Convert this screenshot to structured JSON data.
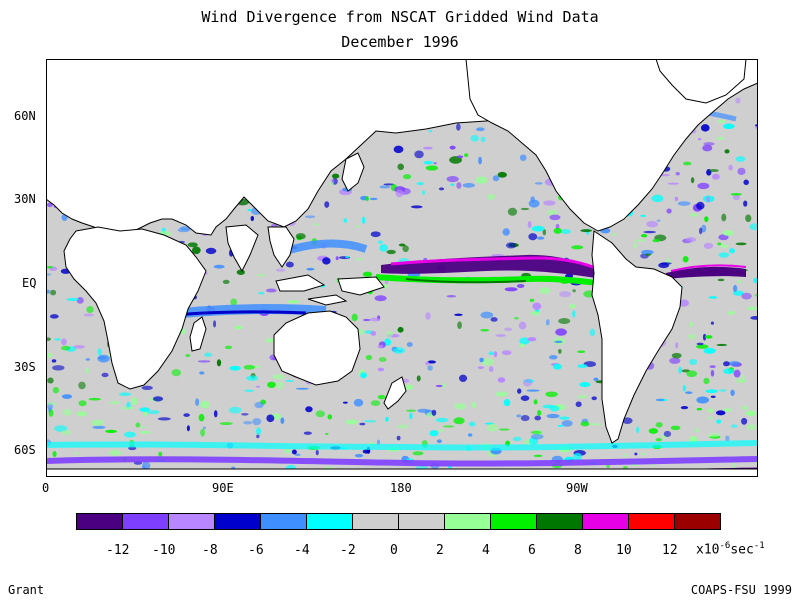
{
  "header": {
    "title": "Wind Divergence from NSCAT Gridded Wind Data",
    "subtitle": "December 1996"
  },
  "axes": {
    "lat_labels": [
      "60N",
      "30N",
      "EQ",
      "30S",
      "60S"
    ],
    "lon_labels": [
      "0",
      "90E",
      "180",
      "90W"
    ]
  },
  "colorbar": {
    "colors": [
      "#4b0082",
      "#7f3fff",
      "#b886ff",
      "#0000cd",
      "#3f8fff",
      "#00ffff",
      "#cfcfcf",
      "#cfcfcf",
      "#96ff96",
      "#00f000",
      "#007800",
      "#e600e6",
      "#ff0000",
      "#9b0000"
    ],
    "tick_labels": [
      "-12",
      "-10",
      "-8",
      "-6",
      "-4",
      "-2",
      "0",
      "2",
      "4",
      "6",
      "8",
      "10",
      "12"
    ],
    "units_prefix": "x10",
    "units_exponent": "-6",
    "units_suffix": "sec",
    "units_suffix_exponent": "-1"
  },
  "footer": {
    "left": "Grant",
    "right": "COAPS-FSU 1999"
  }
}
